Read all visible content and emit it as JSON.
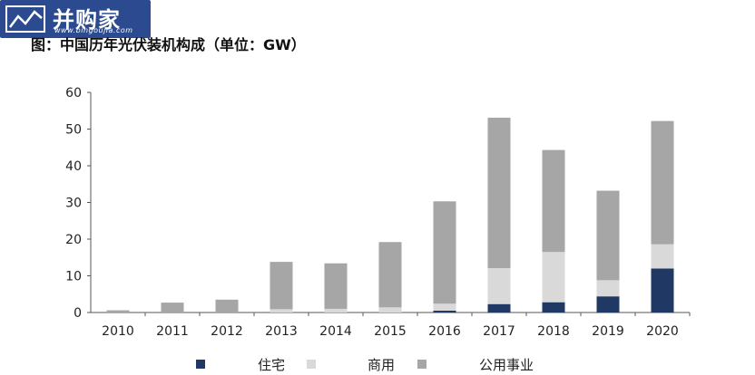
{
  "header": {
    "logo_text": "并购家",
    "logo_url": "www.bingoujia.com",
    "title": "图：中国历年光伏装机构成（单位：GW）"
  },
  "colors": {
    "residential": "#1f3864",
    "commercial": "#d9d9d9",
    "utility": "#a6a6a6",
    "logo_bg": "#2b4a8f"
  },
  "chart_data": {
    "type": "bar",
    "stacked": true,
    "title": "图：中国历年光伏装机构成（单位：GW）",
    "categories": [
      "2010",
      "2011",
      "2012",
      "2013",
      "2014",
      "2015",
      "2016",
      "2017",
      "2018",
      "2019",
      "2020"
    ],
    "series": [
      {
        "name": "住宅",
        "values": [
          0,
          0,
          0,
          0,
          0,
          0,
          0.5,
          2.3,
          2.8,
          4.4,
          12
        ]
      },
      {
        "name": "商用",
        "values": [
          0,
          0,
          0,
          0.9,
          1.0,
          1.4,
          1.9,
          9.8,
          13.7,
          4.4,
          6.6
        ]
      },
      {
        "name": "公用事业",
        "values": [
          0.6,
          2.7,
          3.5,
          12.9,
          12.4,
          17.8,
          27.9,
          41.0,
          27.8,
          24.4,
          33.6
        ]
      }
    ],
    "yticks": [
      0,
      10,
      20,
      30,
      40,
      50,
      60
    ],
    "ylim": [
      0,
      60
    ],
    "grid": false,
    "legend_position": "bottom"
  }
}
